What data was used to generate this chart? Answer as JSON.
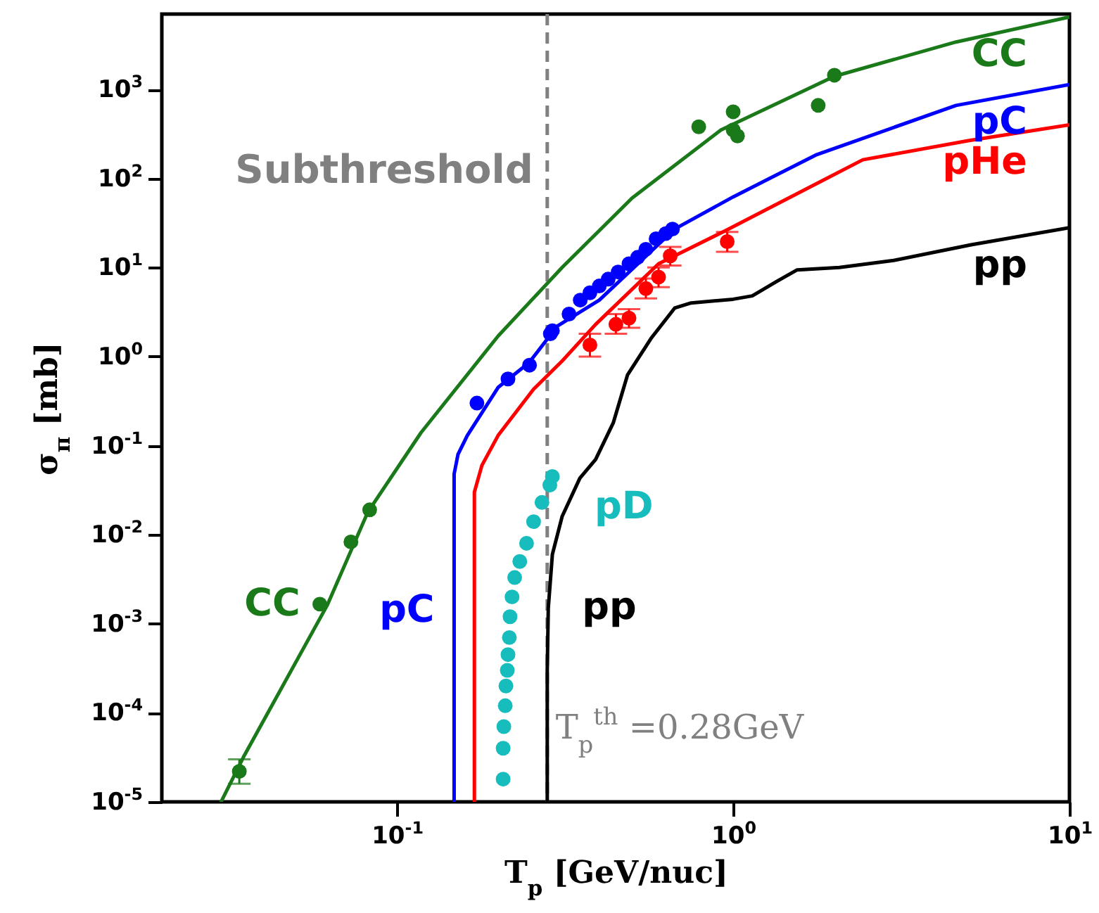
{
  "chart_data": {
    "type": "line",
    "xlabel": "T$_{p}$ [GeV/nuc]",
    "ylabel": "σ$_{π}$ [mb]",
    "log": "xy",
    "xlim": [
      0.02,
      10
    ],
    "ylim": [
      1e-05,
      7000
    ],
    "xticks": [
      {
        "value": 0.1,
        "label": "10$^{-1}$"
      },
      {
        "value": 1,
        "label": "10$^{0}$"
      },
      {
        "value": 10,
        "label": "10$^{1}$"
      }
    ],
    "yticks": [
      {
        "value": 1e-05,
        "label": "10$^{-5}$"
      },
      {
        "value": 0.0001,
        "label": "10$^{-4}$"
      },
      {
        "value": 0.001,
        "label": "10$^{-3}$"
      },
      {
        "value": 0.01,
        "label": "10$^{-2}$"
      },
      {
        "value": 0.1,
        "label": "10$^{-1}$"
      },
      {
        "value": 1,
        "label": "10$^{0}$"
      },
      {
        "value": 10,
        "label": "10$^{1}$"
      },
      {
        "value": 100,
        "label": "10$^{2}$"
      },
      {
        "value": 1000,
        "label": "10$^{3}$"
      }
    ],
    "ref_lines": [
      {
        "axis": "x",
        "value": 0.28,
        "label": "T$_{p}$$^{th}$ =0.28GeV",
        "color": "#808080",
        "line_style": "dashed"
      }
    ],
    "annotations": [
      "Subthreshold",
      {
        "text": "CC",
        "x": 0.059,
        "y": 0.00166
      },
      {
        "text": "pC",
        "x": 0.148,
        "y": 0.0014
      },
      {
        "text": "pp",
        "x": 0.282,
        "y": 0.0015
      }
    ],
    "series": [
      {
        "name": "CC",
        "type": "line",
        "color": "#1a7a1a",
        "line_style": "solid",
        "x": [
          0.03,
          0.035,
          0.062,
          0.082,
          0.118,
          0.2,
          0.31,
          0.5,
          0.92,
          2,
          4.6,
          10
        ],
        "values": [
          1e-05,
          3.2e-05,
          0.0016,
          0.018,
          0.14,
          1.7,
          10,
          60,
          350,
          1400,
          3400,
          6500
        ]
      },
      {
        "type": "scatter",
        "color": "#1a7a1a",
        "marker": "circle",
        "x": [
          0.034,
          0.059,
          0.073,
          0.083,
          0.79,
          1.0,
          1.0,
          1.03,
          1.79,
          2.0
        ],
        "values": [
          2.2e-05,
          0.00166,
          0.0083,
          0.019,
          380,
          560,
          350,
          300,
          660,
          1440
        ],
        "errors": [
          [
            1.6e-05,
            3e-05
          ],
          null,
          null,
          null,
          null,
          null,
          null,
          null,
          null,
          null
        ]
      },
      {
        "name": "pC",
        "type": "line",
        "color": "#0000ff",
        "line_style": "solid",
        "x": [
          0.148,
          0.148,
          0.152,
          0.162,
          0.2,
          0.247,
          0.3,
          0.4,
          0.67,
          1.0,
          1.76,
          4.6,
          10
        ],
        "values": [
          1e-05,
          0.048,
          0.08,
          0.13,
          0.45,
          0.85,
          2.2,
          4.3,
          27,
          62,
          183,
          660,
          1130
        ]
      },
      {
        "type": "scatter",
        "color": "#0000ff",
        "marker": "circle",
        "x": [
          0.173,
          0.214,
          0.248,
          0.286,
          0.29,
          0.325,
          0.351,
          0.375,
          0.4,
          0.425,
          0.455,
          0.49,
          0.52,
          0.55,
          0.59,
          0.63,
          0.66
        ],
        "values": [
          0.3,
          0.56,
          0.8,
          1.8,
          1.95,
          3.0,
          4.3,
          5.2,
          6.2,
          7.4,
          8.9,
          11,
          13,
          16,
          21,
          24,
          27
        ]
      },
      {
        "name": "pHe",
        "type": "line",
        "color": "#ff0000",
        "line_style": "solid",
        "x": [
          0.17,
          0.17,
          0.179,
          0.2,
          0.255,
          0.31,
          0.39,
          0.6,
          0.95,
          2.43,
          5,
          10
        ],
        "values": [
          1e-05,
          0.03,
          0.06,
          0.13,
          0.43,
          0.89,
          2.3,
          11,
          26,
          162,
          265,
          400
        ]
      },
      {
        "type": "scatter",
        "color": "#ff0000",
        "marker": "circle",
        "x": [
          0.375,
          0.448,
          0.49,
          0.55,
          0.6,
          0.65,
          0.96
        ],
        "values": [
          1.35,
          2.3,
          2.7,
          5.8,
          7.8,
          13.5,
          19.5
        ],
        "errors": [
          [
            1.0,
            1.8
          ],
          [
            1.8,
            3.0
          ],
          [
            2.1,
            3.4
          ],
          [
            4.5,
            7.5
          ],
          [
            6.0,
            10
          ],
          [
            10.5,
            17
          ],
          [
            15,
            25
          ]
        ]
      },
      {
        "name": "pp",
        "type": "line",
        "color": "#000000",
        "line_style": "solid",
        "x": [
          0.28,
          0.28,
          0.282,
          0.29,
          0.31,
          0.35,
          0.39,
          0.44,
          0.485,
          0.57,
          0.67,
          0.75,
          1.0,
          1.14,
          1.35,
          1.55,
          2.07,
          3,
          5.1,
          10
        ],
        "values": [
          1e-05,
          0.0003,
          0.0015,
          0.006,
          0.016,
          0.043,
          0.07,
          0.18,
          0.62,
          1.6,
          3.5,
          4.0,
          4.4,
          4.8,
          7,
          9.4,
          10,
          12,
          18,
          28
        ]
      },
      {
        "name": "pD",
        "type": "scatter",
        "color": "#17bcbc",
        "marker": "circle",
        "x": [
          0.207,
          0.207,
          0.208,
          0.21,
          0.211,
          0.213,
          0.214,
          0.216,
          0.217,
          0.22,
          0.224,
          0.232,
          0.243,
          0.255,
          0.27,
          0.285,
          0.29
        ],
        "values": [
          1.8e-05,
          4e-05,
          7e-05,
          0.00012,
          0.0002,
          0.0003,
          0.00045,
          0.0007,
          0.0012,
          0.002,
          0.0033,
          0.005,
          0.008,
          0.014,
          0.023,
          0.036,
          0.045
        ]
      }
    ]
  }
}
